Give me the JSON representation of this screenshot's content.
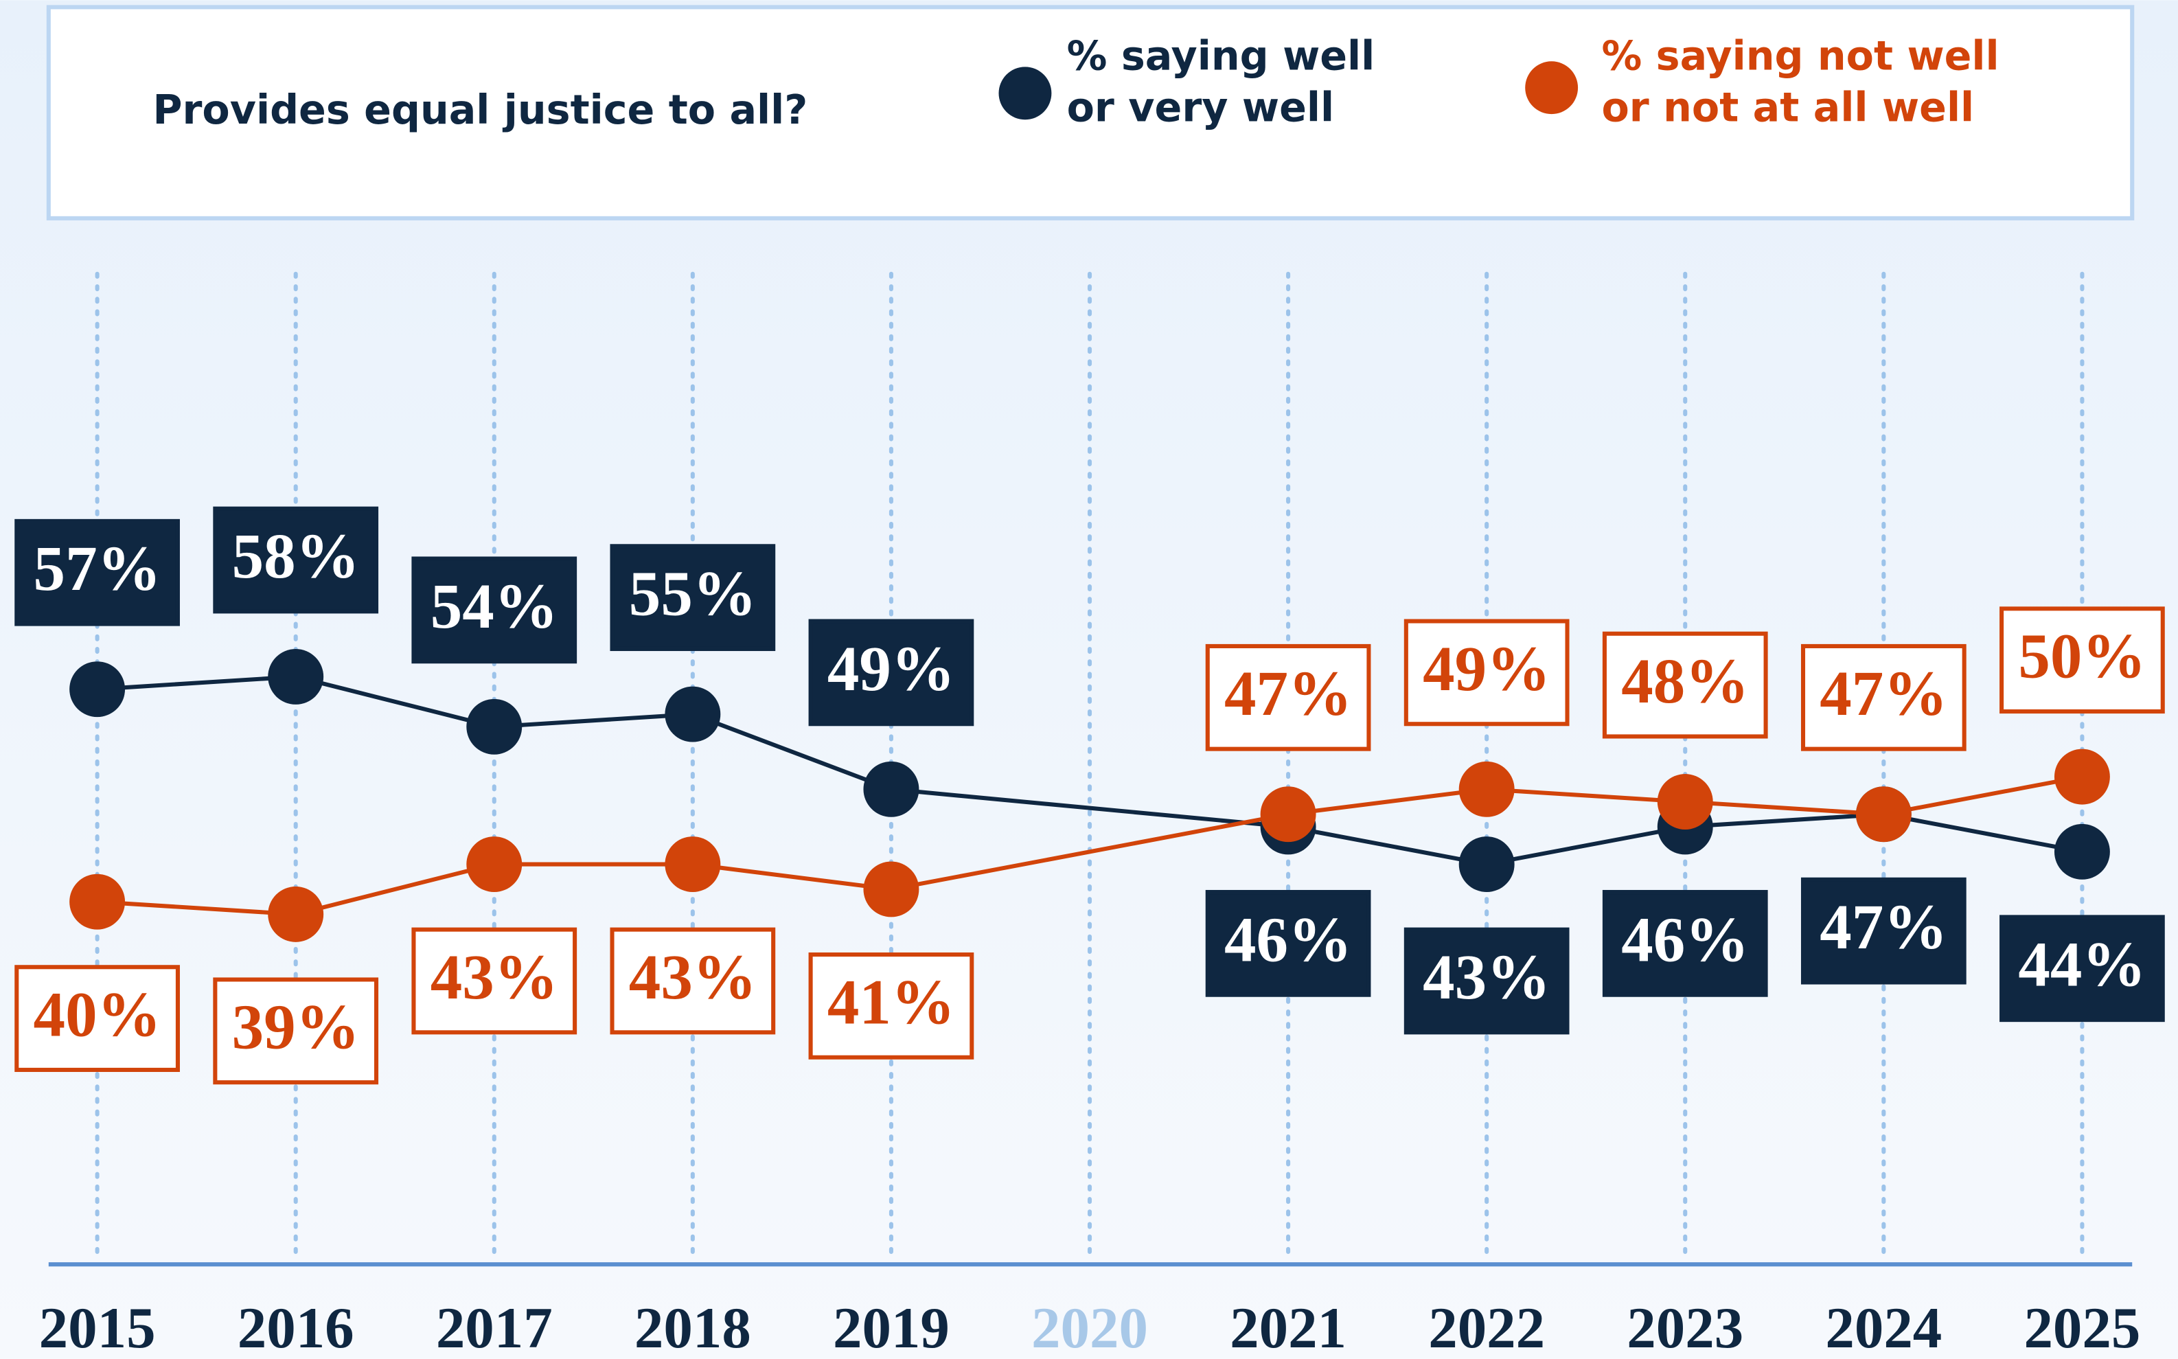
{
  "chart_data": {
    "type": "line",
    "title": "Provides equal justice to all?",
    "x": [
      2015,
      2016,
      2017,
      2018,
      2019,
      2021,
      2022,
      2023,
      2024,
      2025
    ],
    "xticks": [
      2015,
      2016,
      2017,
      2018,
      2019,
      2020,
      2021,
      2022,
      2023,
      2024,
      2025
    ],
    "xlim": [
      2015,
      2025
    ],
    "ylim": [
      11,
      91
    ],
    "series": [
      {
        "name": "% saying well or very well",
        "color": "#0f2741",
        "values": [
          57,
          58,
          54,
          55,
          49,
          46,
          43,
          46,
          47,
          44
        ],
        "value_labels": [
          "57%",
          "58%",
          "54%",
          "55%",
          "49%",
          "46%",
          "43%",
          "46%",
          "47%",
          "44%"
        ]
      },
      {
        "name": "% saying not well or not at all well",
        "color": "#d2440a",
        "values": [
          40,
          39,
          43,
          43,
          41,
          47,
          49,
          48,
          47,
          50
        ],
        "value_labels": [
          "40%",
          "39%",
          "43%",
          "43%",
          "41%",
          "47%",
          "49%",
          "48%",
          "47%",
          "50%"
        ]
      }
    ]
  }
}
